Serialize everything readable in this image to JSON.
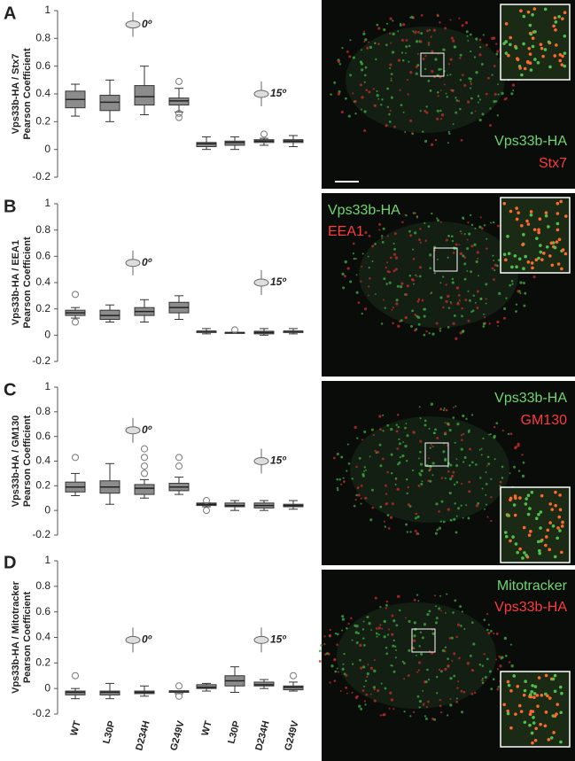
{
  "chart_data": [
    {
      "type": "box",
      "panel": "A",
      "ylabel": [
        "Vps33b-HA / Stx7",
        "Pearson Coefficient"
      ],
      "ylim": [
        -0.2,
        1
      ],
      "yticks": [
        -0.2,
        0,
        0.2,
        0.4,
        0.6,
        0.8,
        1
      ],
      "color": "#8c8c8c",
      "annotations": [
        "0º",
        "15º"
      ],
      "boxes": [
        {
          "min": 0.24,
          "q1": 0.3,
          "median": 0.36,
          "q3": 0.42,
          "max": 0.47,
          "outliers": []
        },
        {
          "min": 0.2,
          "q1": 0.28,
          "median": 0.34,
          "q3": 0.39,
          "max": 0.5,
          "outliers": []
        },
        {
          "min": 0.25,
          "q1": 0.32,
          "median": 0.38,
          "q3": 0.46,
          "max": 0.6,
          "outliers": []
        },
        {
          "min": 0.27,
          "q1": 0.32,
          "median": 0.35,
          "q3": 0.37,
          "max": 0.44,
          "outliers": [
            0.49,
            0.26,
            0.23
          ]
        },
        {
          "min": 0.0,
          "q1": 0.02,
          "median": 0.04,
          "q3": 0.05,
          "max": 0.09,
          "outliers": []
        },
        {
          "min": 0.0,
          "q1": 0.03,
          "median": 0.05,
          "q3": 0.06,
          "max": 0.09,
          "outliers": []
        },
        {
          "min": 0.03,
          "q1": 0.05,
          "median": 0.06,
          "q3": 0.07,
          "max": 0.08,
          "outliers": [
            0.11
          ]
        },
        {
          "min": 0.02,
          "q1": 0.05,
          "median": 0.06,
          "q3": 0.07,
          "max": 0.1,
          "outliers": []
        }
      ]
    },
    {
      "type": "box",
      "panel": "B",
      "ylabel": [
        "Vps33b-HA / EEA1",
        "Pearson Coefficient"
      ],
      "ylim": [
        -0.2,
        1
      ],
      "yticks": [
        -0.2,
        0,
        0.2,
        0.4,
        0.6,
        0.8,
        1
      ],
      "color": "#8c8c8c",
      "annotations": [
        "0º",
        "15º"
      ],
      "boxes": [
        {
          "min": 0.13,
          "q1": 0.15,
          "median": 0.17,
          "q3": 0.19,
          "max": 0.21,
          "outliers": [
            0.31,
            0.1
          ]
        },
        {
          "min": 0.1,
          "q1": 0.12,
          "median": 0.15,
          "q3": 0.19,
          "max": 0.23,
          "outliers": []
        },
        {
          "min": 0.1,
          "q1": 0.15,
          "median": 0.18,
          "q3": 0.21,
          "max": 0.27,
          "outliers": []
        },
        {
          "min": 0.12,
          "q1": 0.17,
          "median": 0.21,
          "q3": 0.25,
          "max": 0.3,
          "outliers": []
        },
        {
          "min": 0.01,
          "q1": 0.02,
          "median": 0.03,
          "q3": 0.03,
          "max": 0.05,
          "outliers": []
        },
        {
          "min": 0.02,
          "q1": 0.02,
          "median": 0.02,
          "q3": 0.02,
          "max": 0.02,
          "outliers": [
            0.04
          ]
        },
        {
          "min": 0.0,
          "q1": 0.01,
          "median": 0.02,
          "q3": 0.03,
          "max": 0.05,
          "outliers": []
        },
        {
          "min": 0.01,
          "q1": 0.02,
          "median": 0.03,
          "q3": 0.03,
          "max": 0.05,
          "outliers": []
        }
      ]
    },
    {
      "type": "box",
      "panel": "C",
      "ylabel": [
        "Vps33b-HA / GM130",
        "Pearson Coefficient"
      ],
      "ylim": [
        -0.2,
        1
      ],
      "yticks": [
        -0.2,
        0,
        0.2,
        0.4,
        0.6,
        0.8,
        1
      ],
      "color": "#8c8c8c",
      "annotations": [
        "0º",
        "15º"
      ],
      "boxes": [
        {
          "min": 0.12,
          "q1": 0.15,
          "median": 0.19,
          "q3": 0.23,
          "max": 0.3,
          "outliers": [
            0.43
          ]
        },
        {
          "min": 0.05,
          "q1": 0.14,
          "median": 0.19,
          "q3": 0.24,
          "max": 0.38,
          "outliers": []
        },
        {
          "min": 0.1,
          "q1": 0.13,
          "median": 0.18,
          "q3": 0.21,
          "max": 0.25,
          "outliers": [
            0.3,
            0.36,
            0.43,
            0.5
          ]
        },
        {
          "min": 0.13,
          "q1": 0.16,
          "median": 0.19,
          "q3": 0.22,
          "max": 0.27,
          "outliers": [
            0.36,
            0.43
          ]
        },
        {
          "min": 0.03,
          "q1": 0.04,
          "median": 0.05,
          "q3": 0.06,
          "max": 0.06,
          "outliers": [
            0.08,
            0.0
          ]
        },
        {
          "min": 0.0,
          "q1": 0.03,
          "median": 0.04,
          "q3": 0.06,
          "max": 0.08,
          "outliers": []
        },
        {
          "min": 0.0,
          "q1": 0.02,
          "median": 0.04,
          "q3": 0.06,
          "max": 0.08,
          "outliers": []
        },
        {
          "min": 0.01,
          "q1": 0.03,
          "median": 0.04,
          "q3": 0.05,
          "max": 0.08,
          "outliers": []
        }
      ]
    },
    {
      "type": "box",
      "panel": "D",
      "ylabel": [
        "Vps33b-HA / Mitotracker",
        "Pearson Coefficient"
      ],
      "ylim": [
        -0.2,
        1
      ],
      "yticks": [
        -0.2,
        0,
        0.2,
        0.4,
        0.6,
        0.8,
        1
      ],
      "color": "#8c8c8c",
      "annotations": [
        "0º",
        "15º"
      ],
      "categories": [
        "WT",
        "L30P",
        "D234H",
        "G249V",
        "WT",
        "L30P",
        "D234H",
        "G249V"
      ],
      "boxes": [
        {
          "min": -0.08,
          "q1": -0.05,
          "median": -0.03,
          "q3": -0.02,
          "max": 0.0,
          "outliers": [
            0.1
          ]
        },
        {
          "min": -0.08,
          "q1": -0.05,
          "median": -0.03,
          "q3": -0.02,
          "max": 0.04,
          "outliers": []
        },
        {
          "min": -0.06,
          "q1": -0.04,
          "median": -0.03,
          "q3": -0.02,
          "max": 0.02,
          "outliers": []
        },
        {
          "min": -0.04,
          "q1": -0.03,
          "median": -0.02,
          "q3": -0.02,
          "max": -0.02,
          "outliers": [
            0.02,
            -0.06
          ]
        },
        {
          "min": -0.02,
          "q1": 0.0,
          "median": 0.01,
          "q3": 0.03,
          "max": 0.04,
          "outliers": []
        },
        {
          "min": -0.03,
          "q1": 0.02,
          "median": 0.06,
          "q3": 0.1,
          "max": 0.17,
          "outliers": []
        },
        {
          "min": 0.0,
          "q1": 0.02,
          "median": 0.03,
          "q3": 0.05,
          "max": 0.07,
          "outliers": []
        },
        {
          "min": -0.02,
          "q1": -0.01,
          "median": 0.01,
          "q3": 0.02,
          "max": 0.05,
          "outliers": [
            0.1
          ]
        }
      ]
    }
  ],
  "images": [
    {
      "labels": [
        "Vps33b-HA",
        "Stx7"
      ]
    },
    {
      "labels": [
        "Vps33b-HA",
        "EEA1"
      ]
    },
    {
      "labels": [
        "Vps33b-HA",
        "GM130"
      ]
    },
    {
      "labels": [
        "Mitotracker",
        "Vps33b-HA"
      ]
    }
  ]
}
